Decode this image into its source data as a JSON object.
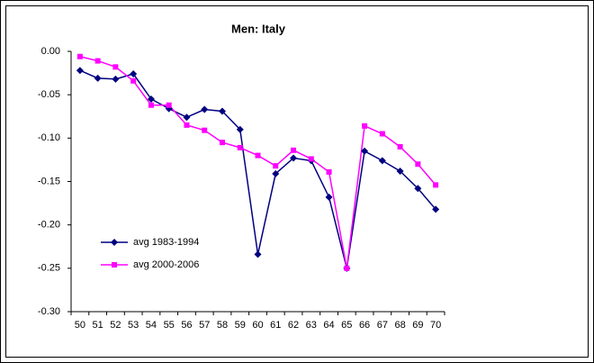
{
  "chart_data": {
    "type": "line",
    "title": "Men: Italy",
    "categories": [
      "50",
      "51",
      "52",
      "53",
      "54",
      "55",
      "56",
      "57",
      "58",
      "59",
      "60",
      "61",
      "62",
      "63",
      "64",
      "65",
      "66",
      "67",
      "68",
      "69",
      "70"
    ],
    "series": [
      {
        "name": "avg 1983-1994",
        "color": "#000080",
        "marker": "diamond",
        "values": [
          -0.022,
          -0.031,
          -0.032,
          -0.026,
          -0.055,
          -0.066,
          -0.076,
          -0.067,
          -0.069,
          -0.09,
          -0.234,
          -0.141,
          -0.123,
          -0.126,
          -0.168,
          -0.25,
          -0.115,
          -0.126,
          -0.138,
          -0.158,
          -0.182
        ]
      },
      {
        "name": "avg 2000-2006",
        "color": "#ff00ff",
        "marker": "square",
        "values": [
          -0.006,
          -0.011,
          -0.018,
          -0.034,
          -0.062,
          -0.062,
          -0.085,
          -0.091,
          -0.105,
          -0.111,
          -0.12,
          -0.132,
          -0.114,
          -0.124,
          -0.139,
          -0.25,
          -0.086,
          -0.095,
          -0.11,
          -0.13,
          -0.154
        ]
      }
    ],
    "ylim": [
      -0.3,
      0.0
    ],
    "yticks": [
      {
        "value": 0.0,
        "label": "0.00"
      },
      {
        "value": -0.05,
        "label": "-0.05"
      },
      {
        "value": -0.1,
        "label": "-0.10"
      },
      {
        "value": -0.15,
        "label": "-0.15"
      },
      {
        "value": -0.2,
        "label": "-0.20"
      },
      {
        "value": -0.25,
        "label": "-0.25"
      },
      {
        "value": -0.3,
        "label": "-0.30"
      }
    ],
    "grid": false,
    "legend": "lower left"
  }
}
